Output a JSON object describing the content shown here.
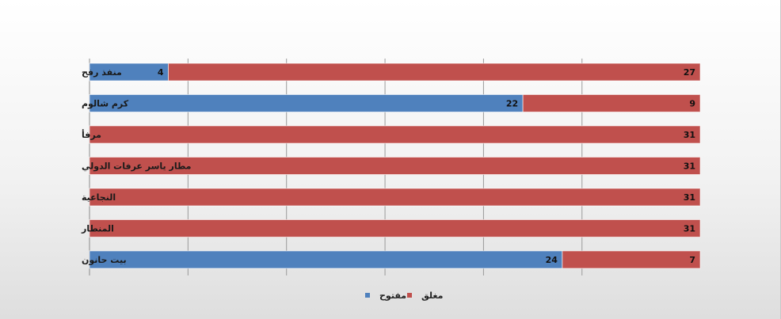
{
  "chart_data": {
    "type": "bar",
    "orientation": "horizontal",
    "stacked": true,
    "categories": [
      "منفذ رفح",
      "كرم شالوم",
      "مرفأ",
      "مطار ياسر عرفات الدولي",
      "النجاعية",
      "المنطار",
      "بيت حانون"
    ],
    "series": [
      {
        "name": "مفتوح",
        "color": "#4f81bd",
        "values": [
          4,
          22,
          0,
          0,
          0,
          0,
          24
        ]
      },
      {
        "name": "مغلق",
        "color": "#c0504d",
        "values": [
          27,
          9,
          31,
          31,
          31,
          31,
          7
        ]
      }
    ],
    "xlim": [
      0,
      31
    ],
    "grid": true,
    "legend_position": "bottom"
  }
}
